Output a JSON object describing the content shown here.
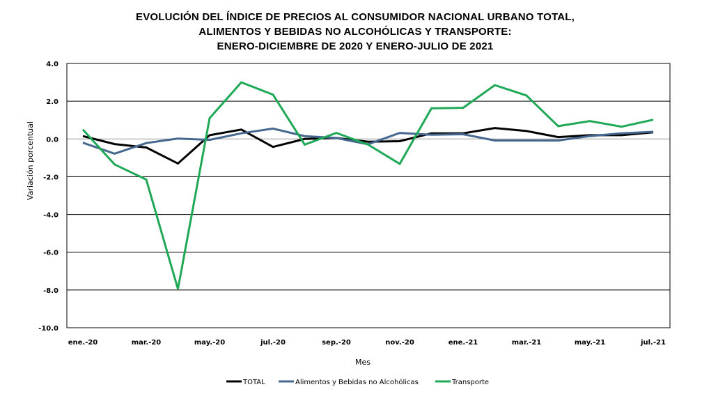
{
  "chart_data": {
    "type": "line",
    "title_lines": [
      "EVOLUCIÓN DEL ÍNDICE DE PRECIOS AL CONSUMIDOR NACIONAL URBANO TOTAL,",
      "ALIMENTOS Y BEBIDAS NO ALCOHÓLICAS Y TRANSPORTE:",
      "ENERO-DICIEMBRE DE 2020 Y ENERO-JULIO DE 2021"
    ],
    "xlabel": "Mes",
    "ylabel": "Variación porcentual",
    "ylim": [
      -10.0,
      4.0
    ],
    "y_ticks": [
      "4.0",
      "2.0",
      "0.0",
      "-2.0",
      "-4.0",
      "-6.0",
      "-8.0",
      "-10.0"
    ],
    "y_tick_values": [
      4,
      2,
      0,
      -2,
      -4,
      -6,
      -8,
      -10
    ],
    "grid": true,
    "legend_position": "bottom",
    "x": [
      "ene.-20",
      "feb.-20",
      "mar.-20",
      "abr.-20",
      "may.-20",
      "jun.-20",
      "jul.-20",
      "ago.-20",
      "sep.-20",
      "oct.-20",
      "nov.-20",
      "dic.-20",
      "ene.-21",
      "feb.-21",
      "mar.-21",
      "abr.-21",
      "may.-21",
      "jun.-21",
      "jul.-21"
    ],
    "x_tick_labels": [
      "ene.-20",
      "mar.-20",
      "may.-20",
      "jul.-20",
      "sep.-20",
      "nov.-20",
      "ene.-21",
      "mar.-21",
      "may.-21",
      "jul.-21"
    ],
    "x_tick_indices": [
      0,
      2,
      4,
      6,
      8,
      10,
      12,
      14,
      16,
      18
    ],
    "series": [
      {
        "name": "TOTAL",
        "color": "#000000",
        "values": [
          0.15,
          -0.27,
          -0.45,
          -1.3,
          0.2,
          0.5,
          -0.42,
          0.0,
          0.05,
          -0.15,
          -0.12,
          0.3,
          0.3,
          0.58,
          0.42,
          0.1,
          0.2,
          0.2,
          0.35
        ]
      },
      {
        "name": "Alimentos y Bebidas no Alcohólicas",
        "color": "#44678f",
        "values": [
          -0.2,
          -0.78,
          -0.22,
          0.02,
          -0.05,
          0.3,
          0.55,
          0.15,
          0.05,
          -0.28,
          0.32,
          0.22,
          0.25,
          -0.08,
          -0.08,
          -0.08,
          0.15,
          0.3,
          0.38
        ]
      },
      {
        "name": "Transporte",
        "color": "#1fa855",
        "values": [
          0.5,
          -1.35,
          -2.15,
          -7.95,
          1.1,
          3.0,
          2.35,
          -0.3,
          0.32,
          -0.3,
          -1.32,
          1.62,
          1.65,
          2.85,
          2.3,
          0.68,
          0.95,
          0.65,
          1.02
        ]
      }
    ]
  }
}
